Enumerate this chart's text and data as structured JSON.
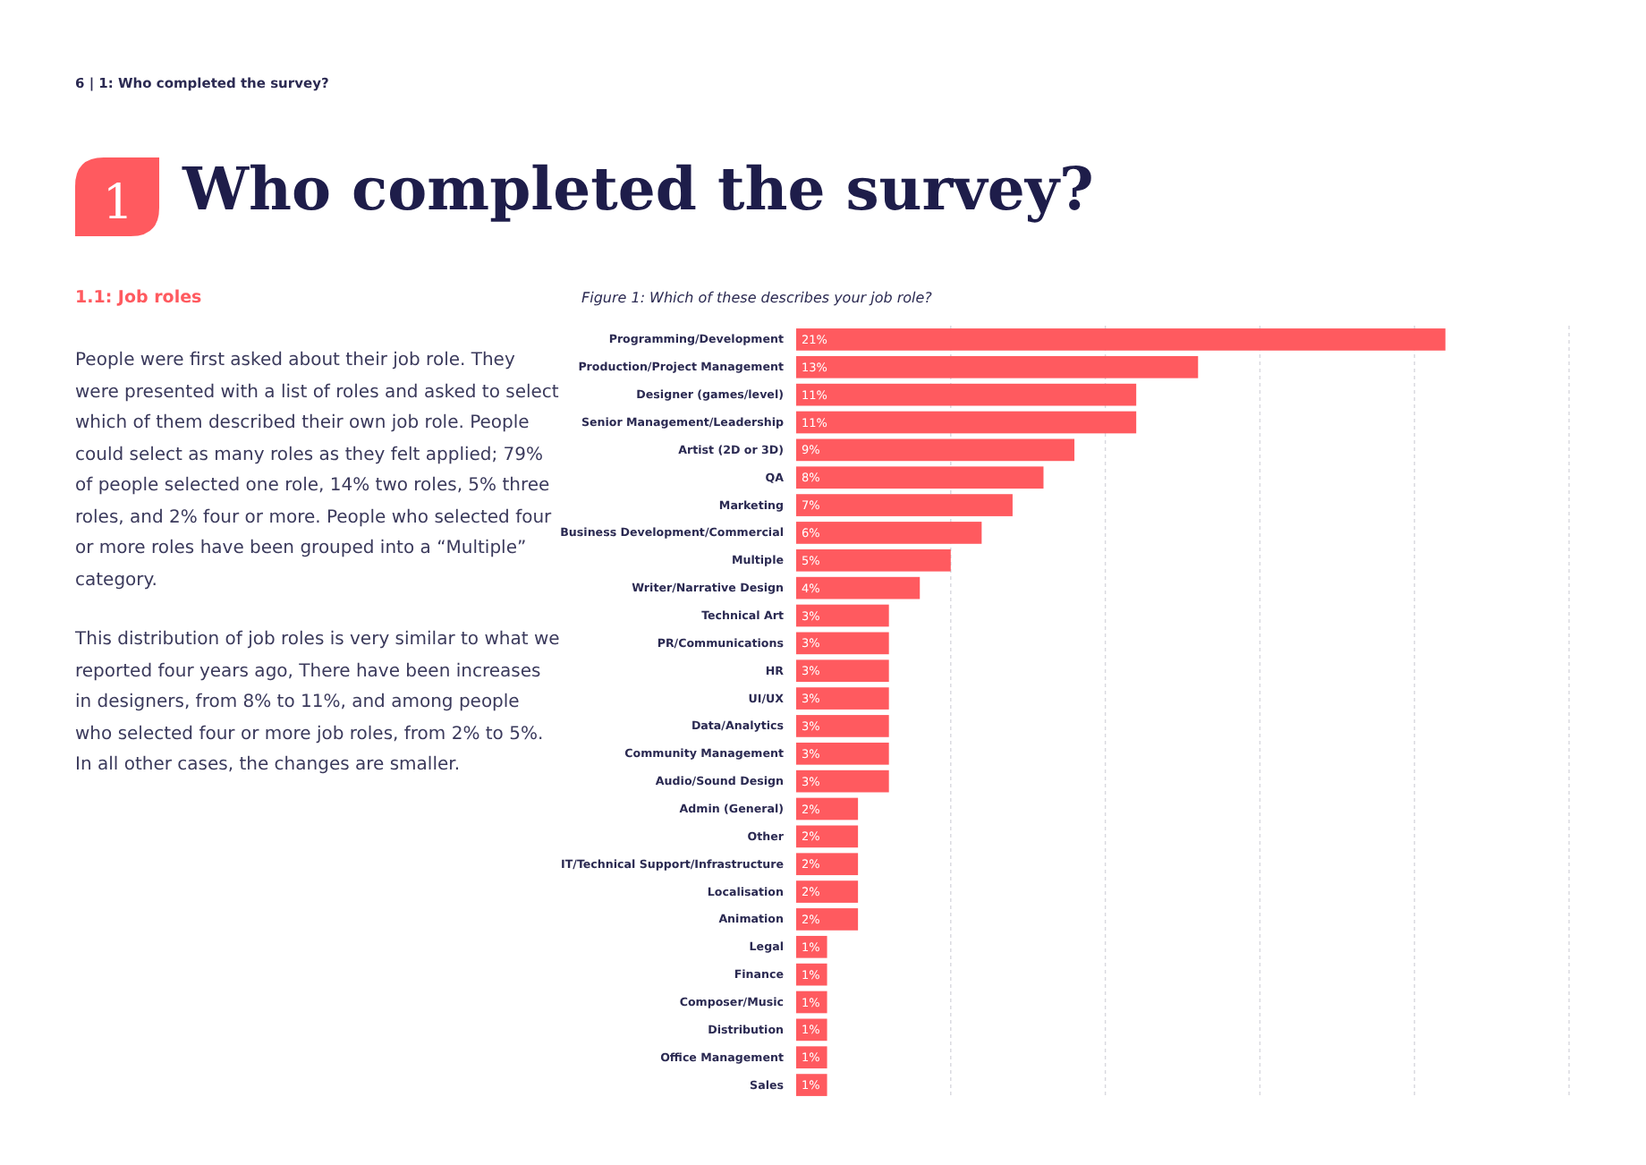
{
  "chart_data": {
    "type": "bar",
    "orientation": "horizontal",
    "title": "Who completed the survey?",
    "subtitle": "Figure 1: Which of these describes your job role?",
    "annotations": [
      "6  |  1: Who completed the survey?",
      "1",
      "1.1: Job roles",
      "People were first asked about their job role. They were presented with a list of roles and asked to select which of them described their own job role. People could select as many roles as they felt applied; 79% of people selected one role, 14% two roles, 5% three roles, and 2% four or more. People who selected four or more roles have been grouped into a “Multiple” category.",
      "This distribution of job roles is very similar to what we reported four years ago, There have been increases in designers, from 8% to 11%, and among people who selected four or more job roles, from 2% to 5%. In all other cases, the changes are smaller."
    ],
    "categories": [
      "Programming/Development",
      "Production/Project Management",
      "Designer (games/level)",
      "Senior Management/Leadership",
      "Artist (2D or 3D)",
      "QA",
      "Marketing",
      "Business Development/Commercial",
      "Multiple",
      "Writer/Narrative Design",
      "Technical Art",
      "PR/Communications",
      "HR",
      "UI/UX",
      "Data/Analytics",
      "Community Management",
      "Audio/Sound Design",
      "Admin (General)",
      "Other",
      "IT/Technical Support/Infrastructure",
      "Localisation",
      "Animation",
      "Legal",
      "Finance",
      "Composer/Music",
      "Distribution",
      "Office Management",
      "Sales"
    ],
    "values": [
      21,
      13,
      11,
      11,
      9,
      8,
      7,
      6,
      5,
      4,
      3,
      3,
      3,
      3,
      3,
      3,
      3,
      2,
      2,
      2,
      2,
      2,
      1,
      1,
      1,
      1,
      1,
      1
    ],
    "value_labels": [
      "21%",
      "13%",
      "11%",
      "11%",
      "9%",
      "8%",
      "7%",
      "6%",
      "5%",
      "4%",
      "3%",
      "3%",
      "3%",
      "3%",
      "3%",
      "3%",
      "3%",
      "2%",
      "2%",
      "2%",
      "2%",
      "2%",
      "1%",
      "1%",
      "1%",
      "1%",
      "1%",
      "1%"
    ],
    "color": "#ff5a5f",
    "xlim": [
      0,
      25
    ],
    "xticks": [
      {
        "value": 5,
        "label": null
      },
      {
        "value": 10,
        "label": null
      },
      {
        "value": 15,
        "label": null
      },
      {
        "value": 20,
        "label": null
      },
      {
        "value": 25,
        "label": null
      }
    ],
    "grid": "x",
    "tick_labels": "y"
  }
}
